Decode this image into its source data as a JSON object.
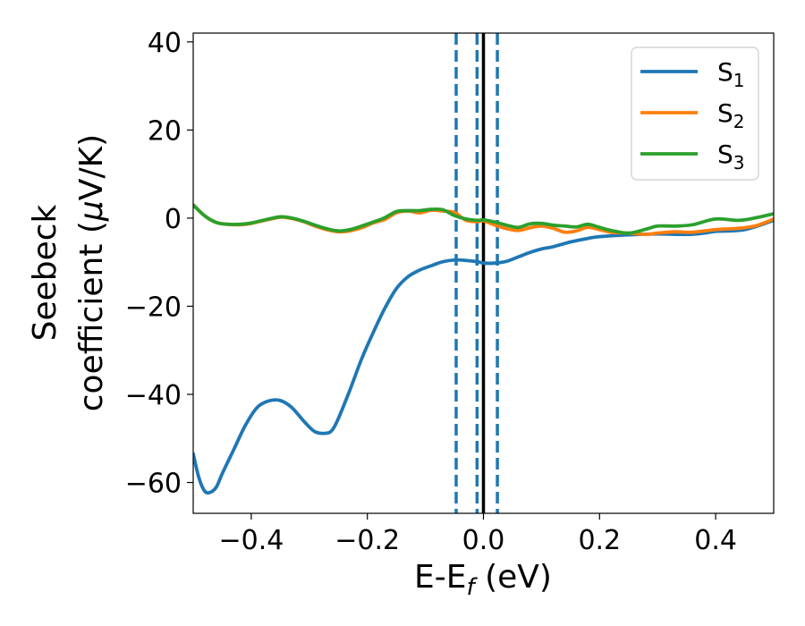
{
  "chart_data": {
    "type": "line",
    "xlabel": "E-E_f (eV)",
    "ylabel": "Seebeck coefficient (μV/K)",
    "xlim": [
      -0.5,
      0.5
    ],
    "ylim": [
      -67,
      42
    ],
    "x_ticks": [
      -0.4,
      -0.2,
      0.0,
      0.2,
      0.4
    ],
    "x_tick_labels": [
      "−0.4",
      "−0.2",
      "0.0",
      "0.2",
      "0.4"
    ],
    "y_ticks": [
      -60,
      -40,
      -20,
      0,
      20,
      40
    ],
    "y_tick_labels": [
      "−60",
      "−40",
      "−20",
      "0",
      "20",
      "40"
    ],
    "legend_position": "top-right",
    "grid": false,
    "series": [
      {
        "name": "S1",
        "label_main": "S",
        "label_sub": "1",
        "color": "#1f77b4",
        "x": [
          -0.5,
          -0.49,
          -0.48,
          -0.47,
          -0.46,
          -0.45,
          -0.43,
          -0.41,
          -0.39,
          -0.37,
          -0.35,
          -0.33,
          -0.31,
          -0.29,
          -0.27,
          -0.26,
          -0.25,
          -0.23,
          -0.21,
          -0.19,
          -0.17,
          -0.15,
          -0.13,
          -0.11,
          -0.09,
          -0.07,
          -0.05,
          -0.03,
          -0.01,
          0.0,
          0.02,
          0.04,
          0.06,
          0.08,
          0.1,
          0.12,
          0.15,
          0.18,
          0.2,
          0.25,
          0.3,
          0.35,
          0.38,
          0.4,
          0.45,
          0.5
        ],
        "y": [
          -53.5,
          -59,
          -62,
          -62.2,
          -61,
          -58,
          -52.5,
          -47,
          -43,
          -41.5,
          -41.4,
          -43,
          -46,
          -48.5,
          -48.8,
          -48,
          -45.5,
          -39,
          -32,
          -26,
          -20.5,
          -16,
          -13.3,
          -11.8,
          -10.8,
          -9.9,
          -9.5,
          -9.6,
          -9.9,
          -10.2,
          -10.2,
          -9.8,
          -8.8,
          -7.8,
          -7,
          -6.5,
          -5.4,
          -4.6,
          -4.2,
          -3.8,
          -3.6,
          -3.7,
          -3.4,
          -3.0,
          -2.6,
          -0.5
        ]
      },
      {
        "name": "S2",
        "label_main": "S",
        "label_sub": "2",
        "color": "#ff7f0e",
        "x": [
          -0.5,
          -0.48,
          -0.46,
          -0.44,
          -0.42,
          -0.4,
          -0.38,
          -0.35,
          -0.33,
          -0.31,
          -0.29,
          -0.27,
          -0.25,
          -0.23,
          -0.21,
          -0.19,
          -0.17,
          -0.15,
          -0.13,
          -0.11,
          -0.09,
          -0.07,
          -0.05,
          -0.03,
          -0.01,
          0.0,
          0.02,
          0.04,
          0.06,
          0.08,
          0.1,
          0.12,
          0.14,
          0.16,
          0.18,
          0.2,
          0.22,
          0.25,
          0.28,
          0.3,
          0.33,
          0.36,
          0.4,
          0.44,
          0.47,
          0.5
        ],
        "y": [
          3,
          0.5,
          -1,
          -1.4,
          -1.5,
          -1.2,
          -0.6,
          0.2,
          -0.1,
          -0.8,
          -1.8,
          -2.6,
          -3.1,
          -2.9,
          -2.2,
          -1.1,
          -0.3,
          1.2,
          1.6,
          1.2,
          1.8,
          1.6,
          1.3,
          -0.5,
          -0.8,
          -0.6,
          -1.6,
          -2.4,
          -2.8,
          -2.2,
          -1.8,
          -2.3,
          -3.2,
          -2.9,
          -2.1,
          -2.6,
          -3.2,
          -3.4,
          -3.7,
          -3.4,
          -3.1,
          -3.2,
          -2.6,
          -2.3,
          -1.7,
          -0.2
        ]
      },
      {
        "name": "S3",
        "label_main": "S",
        "label_sub": "3",
        "color": "#2ca02c",
        "x": [
          -0.5,
          -0.48,
          -0.46,
          -0.44,
          -0.42,
          -0.4,
          -0.38,
          -0.35,
          -0.33,
          -0.31,
          -0.29,
          -0.27,
          -0.25,
          -0.23,
          -0.21,
          -0.19,
          -0.17,
          -0.15,
          -0.13,
          -0.11,
          -0.09,
          -0.07,
          -0.05,
          -0.03,
          -0.01,
          0.0,
          0.02,
          0.04,
          0.06,
          0.08,
          0.1,
          0.12,
          0.14,
          0.16,
          0.18,
          0.2,
          0.22,
          0.25,
          0.28,
          0.3,
          0.33,
          0.36,
          0.4,
          0.44,
          0.47,
          0.5
        ],
        "y": [
          3,
          0.5,
          -1,
          -1.4,
          -1.4,
          -1.1,
          -0.5,
          0.3,
          0,
          -0.7,
          -1.6,
          -2.4,
          -2.9,
          -2.6,
          -1.8,
          -0.9,
          0.1,
          1.5,
          1.7,
          1.7,
          2.0,
          1.9,
          0.6,
          -0.2,
          -0.5,
          -0.4,
          -0.9,
          -1.6,
          -2.1,
          -1.3,
          -1.2,
          -1.6,
          -1.8,
          -2.0,
          -1.4,
          -2.1,
          -2.8,
          -3.4,
          -2.5,
          -1.8,
          -1.8,
          -1.5,
          -0.2,
          -0.5,
          0.1,
          1.0
        ]
      }
    ],
    "vertical_lines": [
      {
        "x": -0.047,
        "style": "dashed",
        "color": "#1f77b4"
      },
      {
        "x": -0.011,
        "style": "dashed",
        "color": "#1f77b4"
      },
      {
        "x": 0.0,
        "style": "solid",
        "color": "#000000"
      },
      {
        "x": 0.024,
        "style": "dashed",
        "color": "#1f77b4"
      }
    ]
  }
}
